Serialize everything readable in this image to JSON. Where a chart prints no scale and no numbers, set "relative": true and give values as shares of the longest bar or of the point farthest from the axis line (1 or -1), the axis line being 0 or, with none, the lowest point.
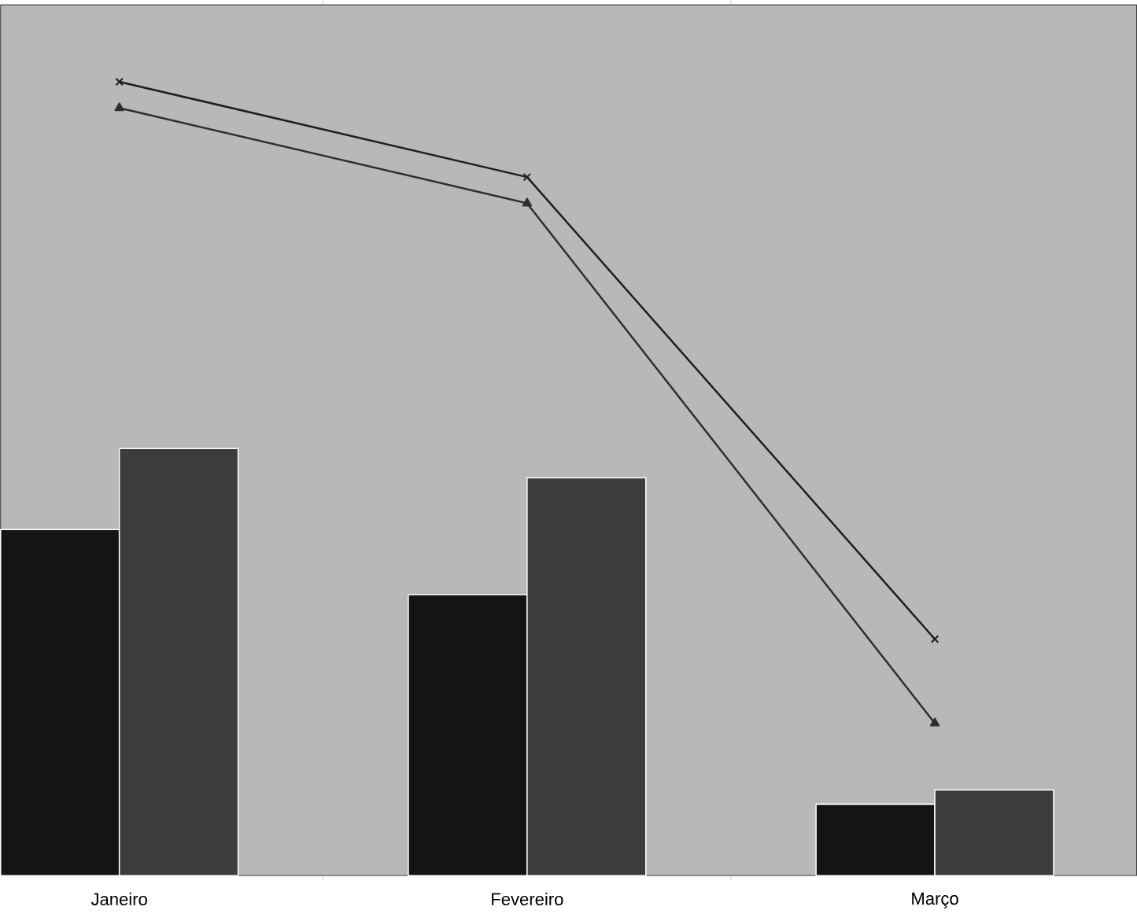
{
  "chart_data": {
    "type": "bar",
    "relative": true,
    "categories": [
      "Janeiro",
      "Fevereiro",
      "Março"
    ],
    "series": [
      {
        "color": "#141414",
        "values": [
          0.436,
          0.354,
          0.09
        ]
      },
      {
        "color": "#3c3c3c",
        "values": [
          0.538,
          0.501,
          0.108
        ]
      },
      {
        "type": "line",
        "color": "#1e1e1e",
        "marker": "cross",
        "values": [
          1,
          0.88,
          0.298
        ]
      },
      {
        "type": "line",
        "color": "#2e2e2e",
        "marker": "triangle",
        "values": [
          0.967,
          0.847,
          0.192
        ]
      }
    ]
  }
}
